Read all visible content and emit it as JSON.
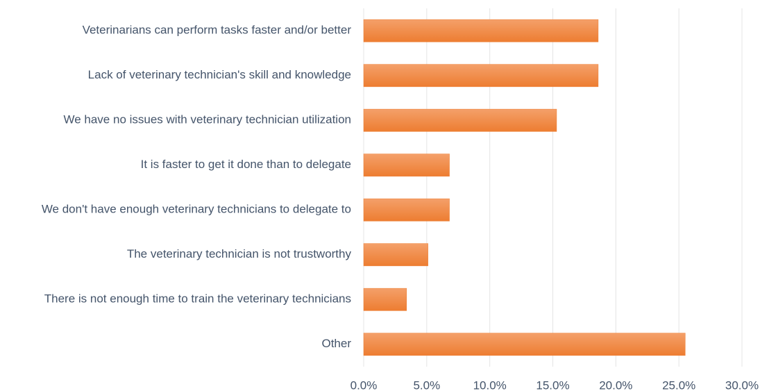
{
  "chart_data": {
    "type": "barh",
    "categories": [
      "Veterinarians can perform tasks faster and/or better",
      "Lack of veterinary technician's skill and knowledge",
      "We have no issues with veterinary technician utilization",
      "It is faster to get it done than to delegate",
      "We don't have enough veterinary technicians to delegate to",
      "The veterinary technician is not trustworthy",
      "There is not enough time to train the veterinary technicians",
      "Other"
    ],
    "values": [
      18.6,
      18.6,
      15.3,
      6.8,
      6.8,
      5.1,
      3.4,
      25.5
    ],
    "color": "#ed7d31",
    "xlim": [
      0,
      30
    ],
    "xticks": [
      {
        "value": 0,
        "label": "0.0%"
      },
      {
        "value": 5,
        "label": "5.0%"
      },
      {
        "value": 10,
        "label": "10.0%"
      },
      {
        "value": 15,
        "label": "15.0%"
      },
      {
        "value": 20,
        "label": "20.0%"
      },
      {
        "value": 25,
        "label": "25.0%"
      },
      {
        "value": 30,
        "label": "30.0%"
      }
    ],
    "grid": true
  }
}
